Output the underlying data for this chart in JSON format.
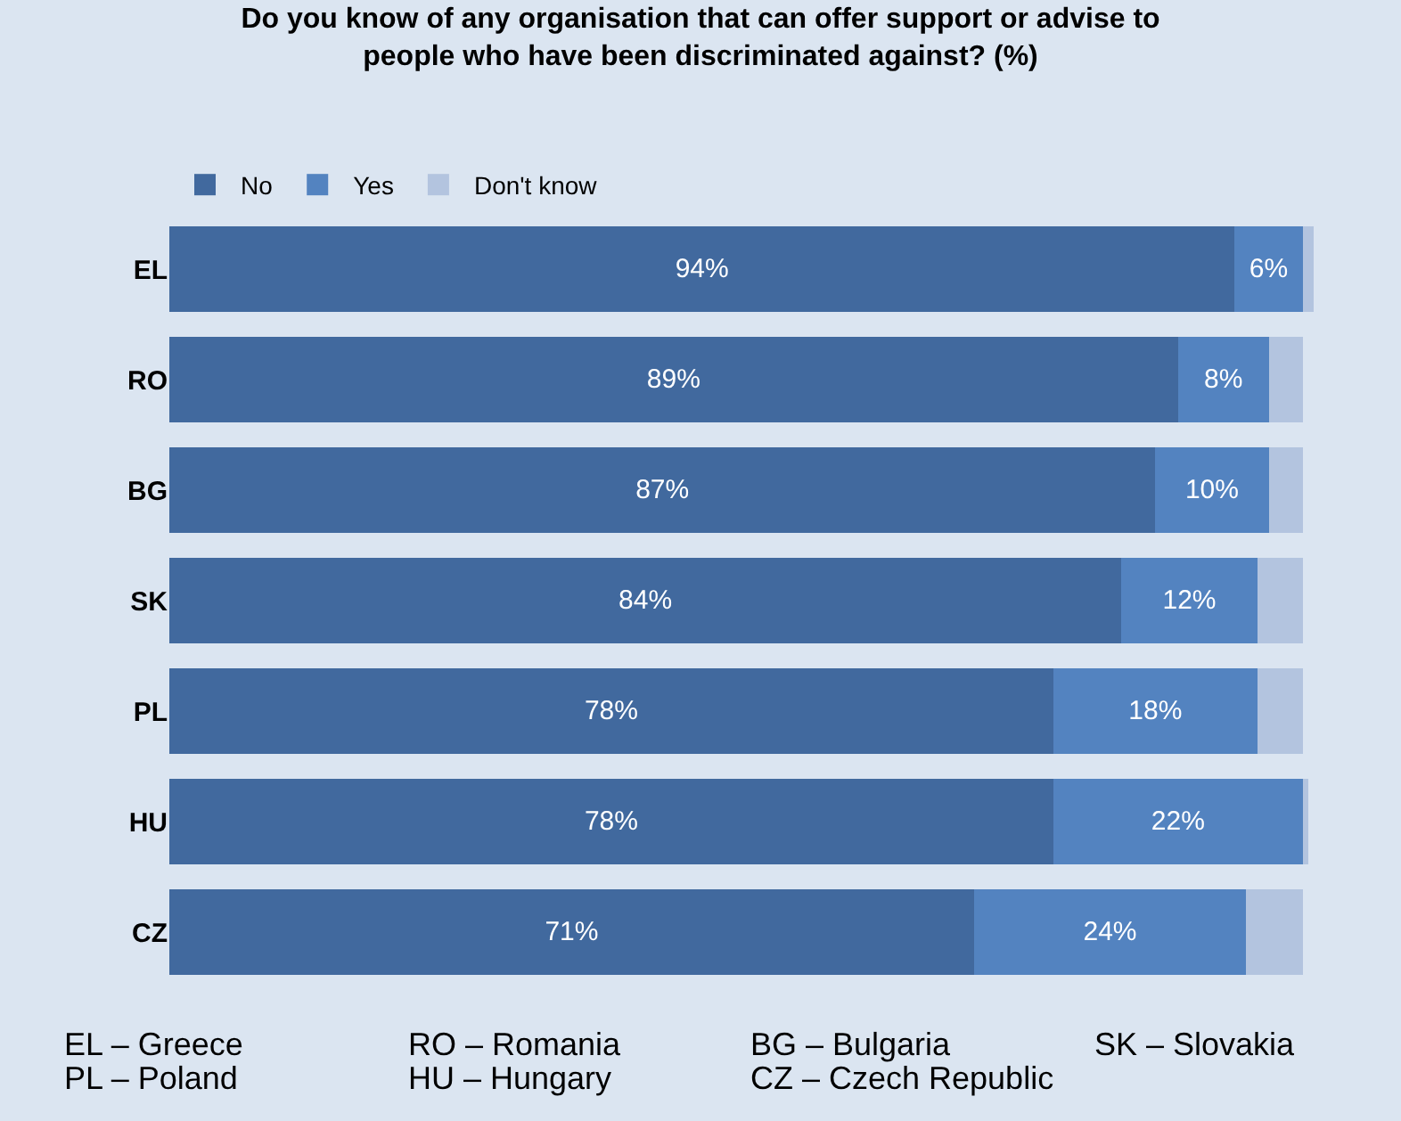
{
  "chart_data": {
    "type": "bar",
    "orientation": "horizontal",
    "stacked": true,
    "title": "Do you know of any organisation that can offer support or advise to people who have been discriminated against? (%)",
    "categories": [
      "EL",
      "RO",
      "BG",
      "SK",
      "PL",
      "HU",
      "CZ"
    ],
    "series": [
      {
        "name": "No",
        "color": "#41699e",
        "values": [
          94,
          89,
          87,
          84,
          78,
          78,
          71
        ],
        "value_labels": [
          "94%",
          "89%",
          "87%",
          "84%",
          "78%",
          "78%",
          "71%"
        ]
      },
      {
        "name": "Yes",
        "color": "#5383c0",
        "values": [
          6,
          8,
          10,
          12,
          18,
          22,
          24
        ],
        "value_labels": [
          "6%",
          "8%",
          "10%",
          "12%",
          "18%",
          "22%",
          "24%"
        ]
      },
      {
        "name": "Don't know",
        "color": "#b3c4df",
        "values": [
          1,
          3,
          3,
          4,
          4,
          0.5,
          5
        ]
      }
    ],
    "legend": "top left",
    "annotations": [
      "EL – Greece",
      "RO – Romania",
      "BG – Bulgaria",
      "SK – Slovakia",
      "PL – Poland",
      "HU – Hungary",
      "CZ – Czech Republic"
    ]
  }
}
